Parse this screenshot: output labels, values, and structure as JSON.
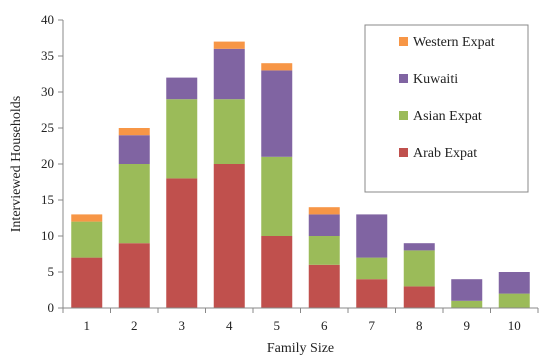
{
  "chart_data": {
    "type": "bar",
    "stacked": true,
    "xlabel": "Family Size",
    "ylabel": "Interviewed Households",
    "categories": [
      "1",
      "2",
      "3",
      "4",
      "5",
      "6",
      "7",
      "8",
      "9",
      "10"
    ],
    "ylim": [
      0,
      40
    ],
    "yticks": [
      0,
      5,
      10,
      15,
      20,
      25,
      30,
      35,
      40
    ],
    "grid": false,
    "legend_position": "top-right",
    "series": [
      {
        "name": "Arab Expat",
        "color": "#c0504d",
        "values": [
          7,
          9,
          18,
          20,
          10,
          6,
          4,
          3,
          0,
          0
        ]
      },
      {
        "name": "Asian Expat",
        "color": "#9bbb59",
        "values": [
          5,
          11,
          11,
          9,
          11,
          4,
          3,
          5,
          1,
          2
        ]
      },
      {
        "name": "Kuwaiti",
        "color": "#8064a2",
        "values": [
          0,
          4,
          3,
          7,
          12,
          3,
          6,
          1,
          3,
          3
        ]
      },
      {
        "name": "Western Expat",
        "color": "#f79646",
        "values": [
          1,
          1,
          0,
          1,
          1,
          1,
          0,
          0,
          0,
          0
        ]
      }
    ],
    "legend_order": [
      "Western Expat",
      "Kuwaiti",
      "Asian Expat",
      "Arab Expat"
    ]
  }
}
